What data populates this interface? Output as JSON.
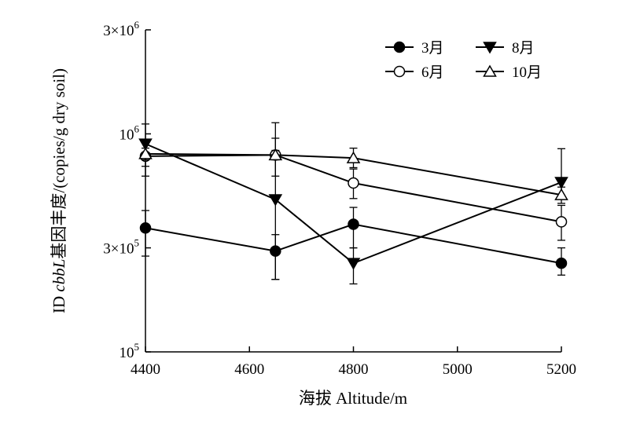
{
  "chart_data": {
    "type": "line",
    "xlabel": "海拔 Altitude/m",
    "ylabel": "ID cbbL基因丰度/(copies/g dry soil)",
    "ylabel_parts": [
      "ID ",
      "cbbL",
      "基因丰度/(copies/g dry soil)"
    ],
    "x": [
      4400,
      4650,
      4800,
      5200
    ],
    "xlim": [
      4400,
      5200
    ],
    "xticks": [
      4400,
      4600,
      4800,
      5000,
      5200
    ],
    "ylim": [
      100000,
      3000000
    ],
    "yscale": "log",
    "yticks": [
      {
        "value": 100000,
        "base": "10",
        "exp": "5",
        "prefix": ""
      },
      {
        "value": 300000,
        "base": "10",
        "exp": "5",
        "prefix": "3×"
      },
      {
        "value": 1000000,
        "base": "10",
        "exp": "6",
        "prefix": ""
      },
      {
        "value": 3000000,
        "base": "10",
        "exp": "6",
        "prefix": "3×"
      }
    ],
    "grid": false,
    "legend_position": "top-right",
    "series": [
      {
        "name": "3月",
        "marker": "circle-filled",
        "values": [
          370000,
          290000,
          385000,
          255000
        ],
        "err_low": [
          275000,
          215000,
          300000,
          225000
        ],
        "err_high": [
          445000,
          345000,
          460000,
          300000
        ]
      },
      {
        "name": "6月",
        "marker": "circle-open",
        "values": [
          790000,
          800000,
          595000,
          395000
        ],
        "err_low": [
          640000,
          640000,
          505000,
          325000
        ],
        "err_high": [
          935000,
          955000,
          690000,
          470000
        ]
      },
      {
        "name": "8月",
        "marker": "triangle-down-filled",
        "values": [
          900000,
          500000,
          255000,
          600000
        ],
        "err_low": [
          710000,
          215000,
          205000,
          505000
        ],
        "err_high": [
          1110000,
          1125000,
          300000,
          855000
        ]
      },
      {
        "name": "10月",
        "marker": "triangle-up-open",
        "values": [
          810000,
          800000,
          775000,
          525000
        ],
        "err_low": [
          760000,
          760000,
          700000,
          480000
        ],
        "err_high": [
          860000,
          840000,
          860000,
          570000
        ]
      }
    ]
  }
}
